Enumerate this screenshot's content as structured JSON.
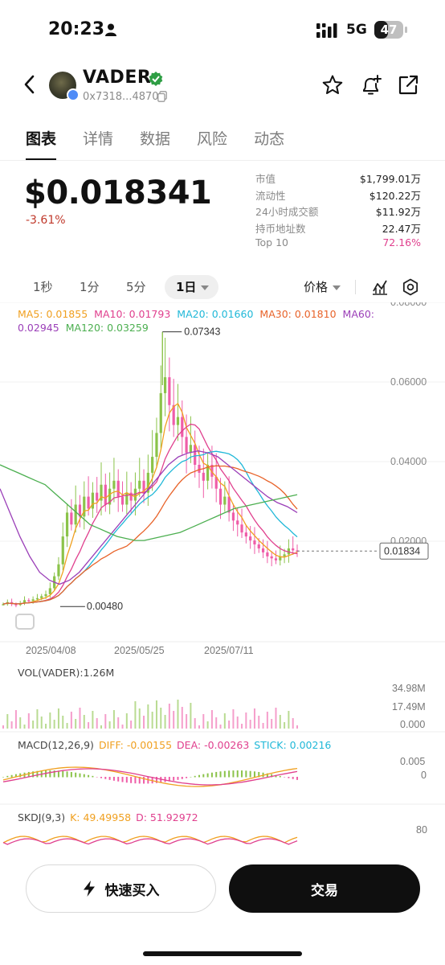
{
  "status_bar": {
    "time": "20:23",
    "network": "5G",
    "battery": "47",
    "battery_level": 0.47
  },
  "header": {
    "token_name": "VADER",
    "address": "0x7318...4870"
  },
  "tabs": [
    {
      "label": "图表",
      "active": true
    },
    {
      "label": "详情",
      "active": false
    },
    {
      "label": "数据",
      "active": false
    },
    {
      "label": "风险",
      "active": false
    },
    {
      "label": "动态",
      "active": false
    }
  ],
  "price": {
    "value": "$0.018341",
    "change": "-3.61%"
  },
  "stats": [
    {
      "label": "市值",
      "value": "$1,799.01万"
    },
    {
      "label": "流动性",
      "value": "$120.22万"
    },
    {
      "label": "24小时成交额",
      "value": "$11.92万"
    },
    {
      "label": "持币地址数",
      "value": "22.47万"
    },
    {
      "label": "Top 10",
      "value": "72.16%"
    }
  ],
  "intervals": [
    {
      "label": "1秒",
      "active": false
    },
    {
      "label": "1分",
      "active": false
    },
    {
      "label": "5分",
      "active": false
    },
    {
      "label": "1日",
      "active": true
    }
  ],
  "price_selector": "价格",
  "ma_legend": [
    {
      "label": "MA5: 0.01855",
      "color": "#f0a020"
    },
    {
      "label": "MA10: 0.01793",
      "color": "#e0408e"
    },
    {
      "label": "MA20: 0.01660",
      "color": "#20b8d8"
    },
    {
      "label": "MA30: 0.01810",
      "color": "#e8632a"
    },
    {
      "label": "MA60: 0.02945",
      "color": "#9b3fb8"
    },
    {
      "label": "MA120: 0.03259",
      "color": "#4caf50"
    }
  ],
  "chart_data": [
    {
      "type": "candlestick",
      "y_ticks": [
        "0.08000",
        "0.06000",
        "0.04000",
        "0.02000"
      ],
      "ylim": [
        0.0,
        0.08
      ],
      "x_tick_labels": [
        "2025/04/08",
        "2025/05/25",
        "2025/07/11"
      ],
      "high_marker": "0.07343",
      "low_marker": "0.00480",
      "current_price_label": "0.01834",
      "current_price": 0.01834,
      "approx_closes": [
        0.005,
        0.0055,
        0.005,
        0.0048,
        0.0052,
        0.006,
        0.0058,
        0.0062,
        0.0065,
        0.007,
        0.0075,
        0.009,
        0.012,
        0.015,
        0.022,
        0.028,
        0.025,
        0.03,
        0.027,
        0.032,
        0.029,
        0.033,
        0.031,
        0.035,
        0.03,
        0.034,
        0.036,
        0.032,
        0.03,
        0.033,
        0.031,
        0.034,
        0.036,
        0.033,
        0.038,
        0.042,
        0.048,
        0.058,
        0.062,
        0.055,
        0.05,
        0.052,
        0.047,
        0.043,
        0.045,
        0.04,
        0.038,
        0.036,
        0.04,
        0.037,
        0.034,
        0.03,
        0.032,
        0.028,
        0.026,
        0.025,
        0.023,
        0.022,
        0.021,
        0.02,
        0.019,
        0.018,
        0.017,
        0.0165,
        0.016,
        0.017,
        0.0175,
        0.019,
        0.0185,
        0.0183
      ],
      "ma120_approx": [
        0.04,
        0.039,
        0.038,
        0.037,
        0.036,
        0.035,
        0.033,
        0.031,
        0.029,
        0.027,
        0.025,
        0.024,
        0.023,
        0.022,
        0.0215,
        0.021,
        0.021,
        0.0215,
        0.022,
        0.0225,
        0.023,
        0.024,
        0.025,
        0.026,
        0.027,
        0.028,
        0.029,
        0.0295,
        0.03,
        0.0305,
        0.031,
        0.0315,
        0.032,
        0.0325
      ],
      "ma60_approx": [
        0.034,
        0.028,
        0.022,
        0.017,
        0.013,
        0.011,
        0.01,
        0.011,
        0.013,
        0.016,
        0.019,
        0.022,
        0.025,
        0.028,
        0.031,
        0.034,
        0.037,
        0.04,
        0.042,
        0.043,
        0.0435,
        0.043,
        0.042,
        0.04,
        0.038,
        0.036,
        0.034,
        0.032,
        0.0305,
        0.0295,
        0.028
      ]
    },
    {
      "type": "bar",
      "title": "VOL(VADER):1.26M",
      "y_ticks": [
        "34.98M",
        "17.49M",
        "0.000"
      ],
      "ylim": [
        0,
        34.98
      ]
    },
    {
      "type": "line",
      "title": "MACD(12,26,9)",
      "legend": [
        "DIFF: -0.00155",
        "DEA: -0.00263",
        "STICK: 0.00216"
      ],
      "y_ticks": [
        "0.005",
        "0"
      ]
    },
    {
      "type": "line",
      "title": "SKDJ(9,3)",
      "legend": [
        "K: 49.49958",
        "D: 51.92972"
      ],
      "y_ticks": [
        "80"
      ]
    }
  ],
  "colors": {
    "up": "#8bc34a",
    "down": "#ef5da8",
    "pink": "#e0408e",
    "red": "#c0392b"
  },
  "buttons": {
    "quick_buy": "快速买入",
    "trade": "交易"
  }
}
